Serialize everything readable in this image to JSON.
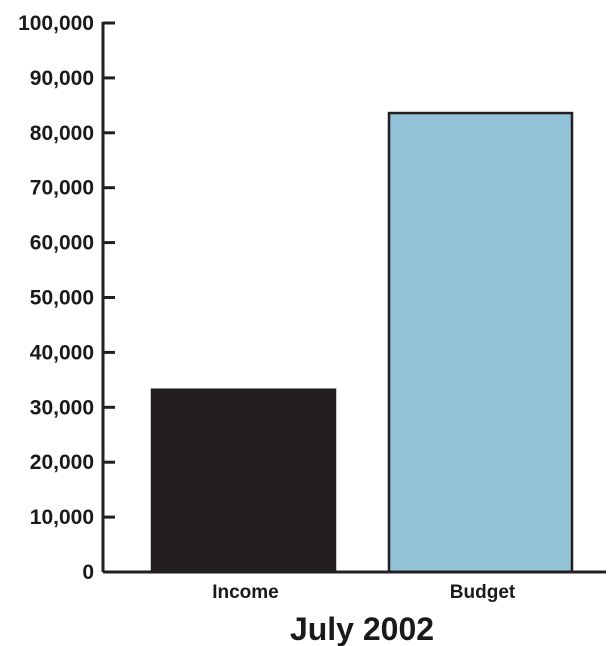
{
  "chart_data": {
    "type": "bar",
    "title": "",
    "xlabel": "July 2002",
    "ylabel": "",
    "categories": [
      "Income",
      "Budget"
    ],
    "values": [
      33200,
      83600
    ],
    "ylim": [
      0,
      100000
    ],
    "ytick_values": [
      0,
      10000,
      20000,
      30000,
      40000,
      50000,
      60000,
      70000,
      80000,
      90000,
      100000
    ],
    "ytick_labels": [
      "0",
      "10,000",
      "20,000",
      "30,000",
      "40,000",
      "50,000",
      "60,000",
      "70,000",
      "80,000",
      "90,000",
      "100,000"
    ],
    "bar_colors": [
      "#231f20",
      "#93c3d9"
    ],
    "edge_color": "#231f20",
    "grid": false,
    "legend": "none"
  }
}
